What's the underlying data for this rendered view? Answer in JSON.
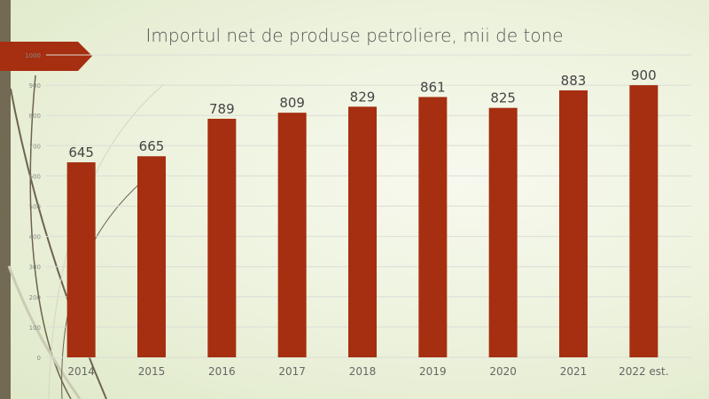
{
  "chart_data": {
    "type": "bar",
    "title": "Importul net de produse petroliere, mii de tone",
    "categories": [
      "2014",
      "2015",
      "2016",
      "2017",
      "2018",
      "2019",
      "2020",
      "2021",
      "2022 est."
    ],
    "values": [
      645,
      665,
      789,
      809,
      829,
      861,
      825,
      883,
      900
    ],
    "ylim": [
      0,
      1000
    ],
    "yticks": [
      "0",
      "100",
      "200",
      "300",
      "400",
      "500",
      "600",
      "700",
      "800",
      "900",
      "1000"
    ],
    "grid": true,
    "bar_color": "#a52f10",
    "xlabel": "",
    "ylabel": ""
  }
}
